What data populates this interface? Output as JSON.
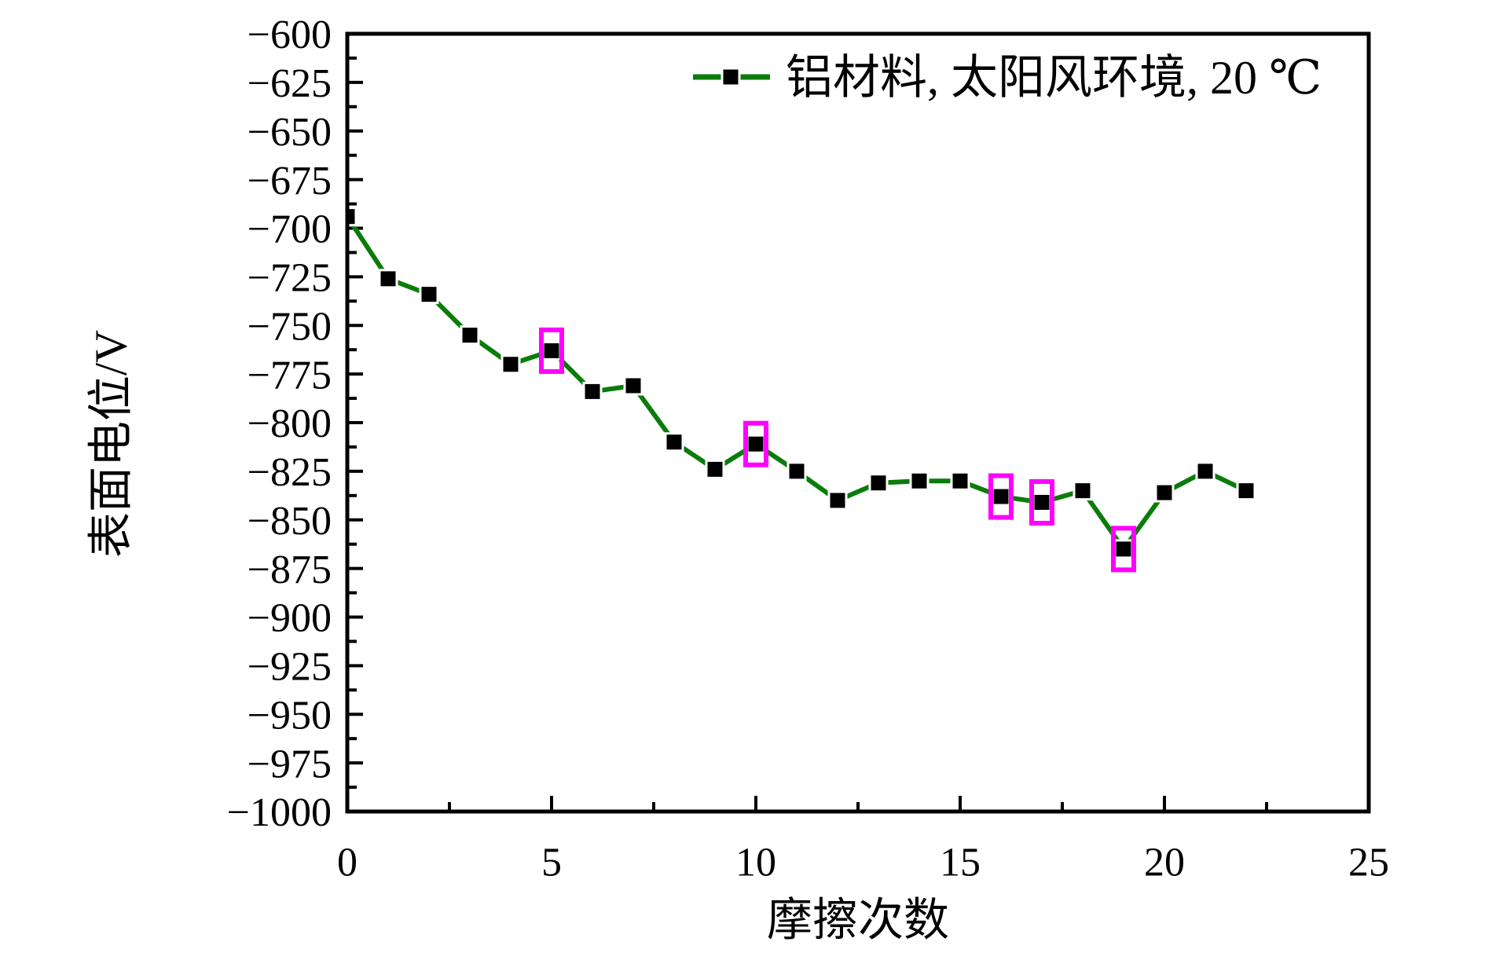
{
  "chart_data": {
    "type": "line",
    "title": "",
    "xlabel": "摩擦次数",
    "ylabel": "表面电位/V",
    "xlim": [
      0,
      25
    ],
    "ylim": [
      -1000,
      -600
    ],
    "grid": false,
    "x_major_ticks": [
      0,
      5,
      10,
      15,
      20,
      25
    ],
    "x_minor_ticks": [
      2.5,
      7.5,
      12.5,
      17.5,
      22.5
    ],
    "x_tick_labels": [
      "0",
      "5",
      "10",
      "15",
      "20",
      "25"
    ],
    "y_major_ticks": [
      -600,
      -625,
      -650,
      -675,
      -700,
      -725,
      -750,
      -775,
      -800,
      -825,
      -850,
      -875,
      -900,
      -925,
      -950,
      -975,
      -1000
    ],
    "y_minor_ticks": [
      -612.5,
      -637.5,
      -662.5,
      -687.5,
      -712.5,
      -737.5,
      -762.5,
      -787.5,
      -812.5,
      -837.5,
      -862.5,
      -887.5,
      -912.5,
      -937.5,
      -962.5,
      -987.5
    ],
    "y_tick_labels": [
      "−600",
      "−625",
      "−650",
      "−675",
      "−700",
      "−725",
      "−750",
      "−775",
      "−800",
      "−825",
      "−850",
      "−875",
      "−900",
      "−925",
      "−950",
      "−975",
      "−1000"
    ],
    "legend": {
      "position": "top-right-inside",
      "entries": [
        {
          "label": "铝材料, 太阳风环境, 20 ℃",
          "marker": "filled-square",
          "color": "#0a7c0a"
        }
      ]
    },
    "series": [
      {
        "name": "铝材料, 太阳风环境, 20 ℃",
        "color": "#0a7c0a",
        "marker": "filled-black-square",
        "x": [
          0,
          1,
          2,
          3,
          4,
          5,
          6,
          7,
          8,
          9,
          10,
          11,
          12,
          13,
          14,
          15,
          16,
          17,
          18,
          19,
          20,
          21,
          22
        ],
        "y": [
          -694,
          -726,
          -734,
          -755,
          -770,
          -763,
          -784,
          -781,
          -810,
          -824,
          -811,
          -825,
          -840,
          -831,
          -830,
          -830,
          -838,
          -841,
          -835,
          -865,
          -836,
          -825,
          -835
        ]
      }
    ],
    "highlighted_points": {
      "color": "#ff00ff",
      "shape": "rectangle-outline",
      "x": [
        5,
        10,
        16,
        17,
        19
      ]
    }
  },
  "colors": {
    "series_green": "#0a7c0a",
    "highlight_magenta": "#ff00ff",
    "axis_black": "#000000",
    "background": "#ffffff"
  }
}
